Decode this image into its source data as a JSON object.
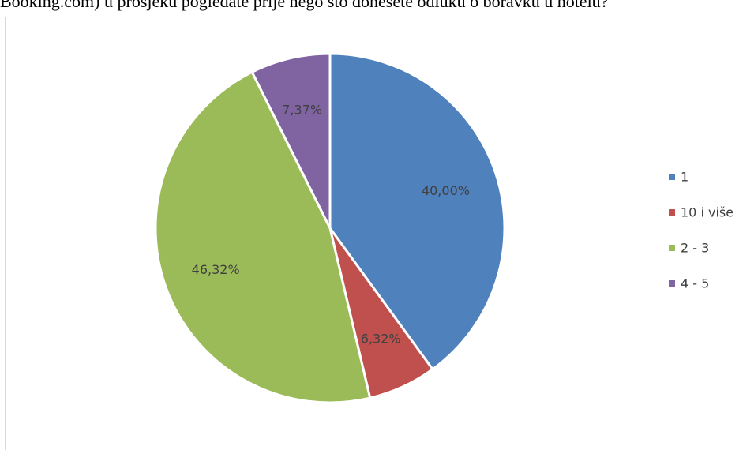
{
  "caption": "Booking.com) u prosjeku pogledate prije nego što donesete odluku o boravku u hotelu?",
  "chart_data": {
    "type": "pie",
    "slices": [
      {
        "label": "1",
        "value": 40.0,
        "display": "40,00%",
        "color": "#4f81bd"
      },
      {
        "label": "10 i više",
        "value": 6.32,
        "display": "6,32%",
        "color": "#c0504d"
      },
      {
        "label": "2 - 3",
        "value": 46.32,
        "display": "46,32%",
        "color": "#9bbb59"
      },
      {
        "label": "4 - 5",
        "value": 7.37,
        "display": "7,37%",
        "color": "#8064a2"
      }
    ],
    "start_angle": "12 o'clock",
    "direction": "clockwise",
    "legend_position": "right"
  }
}
